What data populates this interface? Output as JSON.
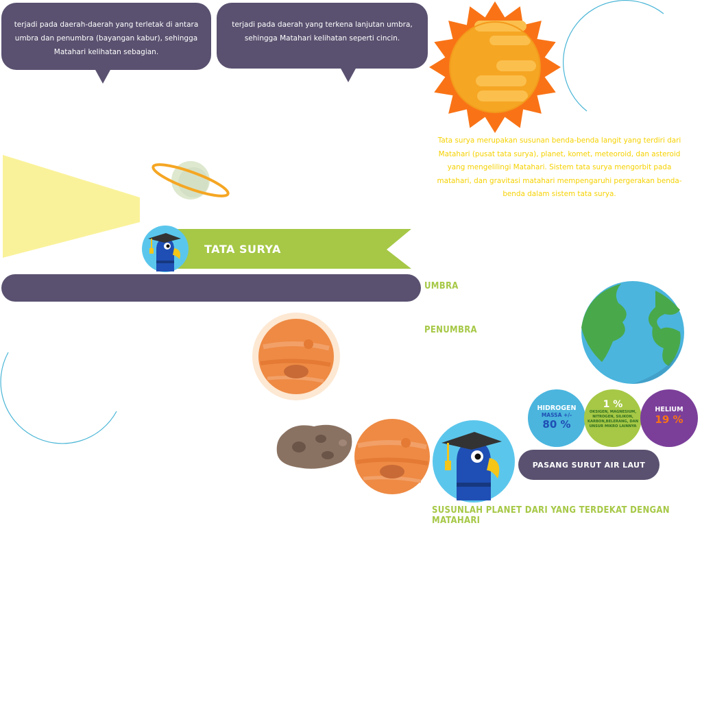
{
  "bubbles": {
    "penumbra_text": "terjadi pada daerah-daerah yang terletak di antara umbra dan penumbra (bayangan kabur), sehingga Matahari kelihatan sebagian.",
    "annular_text": "terjadi pada daerah yang terkena lanjutan umbra, sehingga Matahari kelihatan seperti cincin."
  },
  "intro_paragraph": "Tata surya merupakan susunan benda-benda langit yang terdiri dari Matahari (pusat tata surya), planet, komet, meteoroid, dan asteroid yang mengelilingi Matahari. Sistem tata surya mengorbit pada matahari, dan gravitasi matahari mempengaruhi pergerakan benda-benda dalam sistem tata surya.",
  "banner": {
    "title": "TATA SURYA"
  },
  "labels": {
    "umbra": "UMBRA",
    "penumbra": "PENUMBRA"
  },
  "composition": {
    "hydrogen": {
      "name": "HIDROGEN",
      "sub": "MASSA +/-",
      "value": "80 %"
    },
    "other": {
      "value": "1 %",
      "desc": "OKSIGEN, MAGNESIUM, NITROGEN, SILIKON, KARBON,BELERANG, DAN UNSUR MIKRO LAINNYA"
    },
    "helium": {
      "name": "HELIUM",
      "value": "19 %"
    }
  },
  "tides_button": "PASANG SURUT AIR LAUT",
  "instruction": "SUSUNLAH PLANET DARI YANG TERDEKAT DENGAN MATAHARI",
  "colors": {
    "purple": "#5a5170",
    "green": "#a6c846",
    "yellow": "#f5d100",
    "sun_outer": "#f97316",
    "sun_inner": "#f5a623",
    "earth_ocean": "#4bb5de",
    "earth_land": "#49a84a"
  }
}
